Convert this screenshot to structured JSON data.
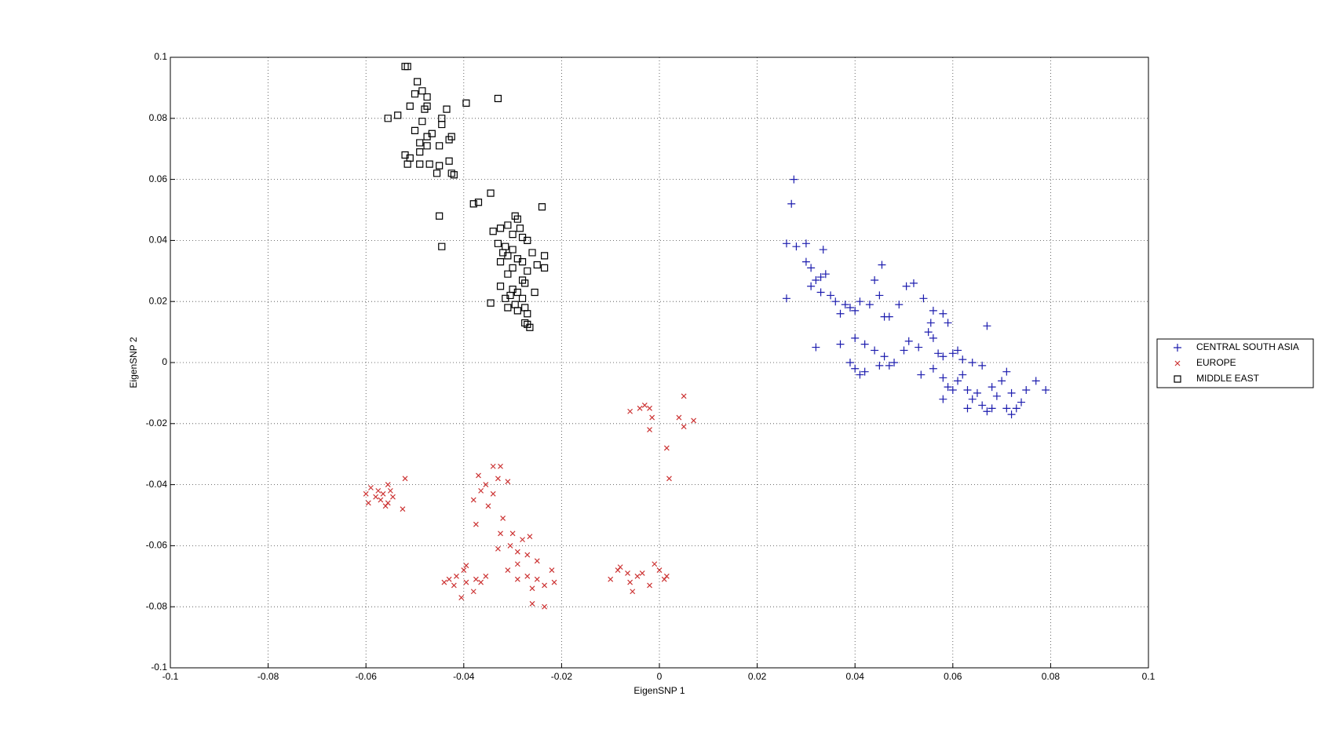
{
  "chart_data": {
    "type": "scatter",
    "xlabel": "EigenSNP 1",
    "ylabel": "EigenSNP 2",
    "xlim": [
      -0.1,
      0.1
    ],
    "ylim": [
      -0.1,
      0.1
    ],
    "xticks": [
      -0.1,
      -0.08,
      -0.06,
      -0.04,
      -0.02,
      0,
      0.02,
      0.04,
      0.06,
      0.08,
      0.1
    ],
    "yticks": [
      -0.1,
      -0.08,
      -0.06,
      -0.04,
      -0.02,
      0,
      0.02,
      0.04,
      0.06,
      0.08,
      0.1
    ],
    "grid": true,
    "legend": "outside-right",
    "series": [
      {
        "name": "CENTRAL SOUTH ASIA",
        "color": "#1c1cae",
        "marker": "plus",
        "x": [
          0.0275,
          0.027,
          0.026,
          0.028,
          0.03,
          0.0335,
          0.026,
          0.03,
          0.031,
          0.033,
          0.032,
          0.034,
          0.031,
          0.033,
          0.035,
          0.036,
          0.038,
          0.039,
          0.04,
          0.037,
          0.041,
          0.043,
          0.045,
          0.0455,
          0.044,
          0.046,
          0.047,
          0.049,
          0.0505,
          0.052,
          0.054,
          0.0555,
          0.056,
          0.058,
          0.059,
          0.032,
          0.037,
          0.04,
          0.042,
          0.044,
          0.046,
          0.048,
          0.05,
          0.051,
          0.053,
          0.055,
          0.056,
          0.057,
          0.058,
          0.06,
          0.061,
          0.062,
          0.064,
          0.066,
          0.039,
          0.04,
          0.041,
          0.042,
          0.045,
          0.047,
          0.056,
          0.058,
          0.059,
          0.06,
          0.061,
          0.062,
          0.063,
          0.064,
          0.065,
          0.066,
          0.067,
          0.068,
          0.069,
          0.07,
          0.071,
          0.072,
          0.073,
          0.074,
          0.075,
          0.077,
          0.079,
          0.067,
          0.071,
          0.072,
          0.068,
          0.063,
          0.058,
          0.0535
        ],
        "y": [
          0.06,
          0.052,
          0.039,
          0.038,
          0.039,
          0.037,
          0.021,
          0.033,
          0.031,
          0.028,
          0.027,
          0.029,
          0.025,
          0.023,
          0.022,
          0.02,
          0.019,
          0.018,
          0.017,
          0.016,
          0.02,
          0.019,
          0.022,
          0.032,
          0.027,
          0.015,
          0.015,
          0.019,
          0.025,
          0.026,
          0.021,
          0.013,
          0.017,
          0.016,
          0.013,
          0.005,
          0.006,
          0.008,
          0.006,
          0.004,
          0.002,
          0.0,
          0.004,
          0.007,
          0.005,
          0.01,
          0.008,
          0.003,
          0.002,
          0.003,
          0.004,
          0.001,
          0.0,
          -0.001,
          0.0,
          -0.002,
          -0.004,
          -0.003,
          -0.001,
          -0.001,
          -0.002,
          -0.005,
          -0.008,
          -0.009,
          -0.006,
          -0.004,
          -0.009,
          -0.012,
          -0.01,
          -0.014,
          -0.016,
          -0.008,
          -0.011,
          -0.006,
          -0.003,
          -0.01,
          -0.015,
          -0.013,
          -0.009,
          -0.006,
          -0.009,
          0.012,
          -0.015,
          -0.017,
          -0.015,
          -0.015,
          -0.012,
          -0.004
        ]
      },
      {
        "name": "EUROPE",
        "color": "#cc3333",
        "marker": "x",
        "x": [
          -0.06,
          -0.059,
          -0.058,
          -0.0575,
          -0.057,
          -0.056,
          -0.0565,
          -0.0555,
          -0.055,
          -0.0545,
          -0.0555,
          -0.0525,
          -0.052,
          -0.0595,
          -0.037,
          -0.034,
          -0.0325,
          -0.0355,
          -0.033,
          -0.031,
          -0.0365,
          -0.034,
          -0.038,
          -0.035,
          -0.032,
          -0.0375,
          -0.0325,
          -0.03,
          -0.028,
          -0.0265,
          -0.0305,
          -0.029,
          -0.033,
          -0.027,
          -0.025,
          -0.029,
          -0.031,
          -0.027,
          -0.029,
          -0.025,
          -0.022,
          -0.0215,
          -0.0235,
          -0.026,
          -0.026,
          -0.0235,
          -0.04,
          -0.0415,
          -0.043,
          -0.044,
          -0.042,
          -0.0395,
          -0.0405,
          -0.038,
          -0.0365,
          -0.0355,
          -0.0375,
          -0.0395,
          -0.01,
          -0.0085,
          -0.0065,
          -0.006,
          -0.0045,
          -0.0035,
          -0.002,
          -0.001,
          0.0,
          0.001,
          0.0015,
          -0.0055,
          -0.008,
          -0.006,
          -0.004,
          -0.003,
          -0.002,
          -0.0015,
          -0.002,
          0.004,
          0.005,
          0.005,
          0.007,
          0.0015,
          0.002
        ],
        "y": [
          -0.043,
          -0.041,
          -0.044,
          -0.042,
          -0.045,
          -0.047,
          -0.043,
          -0.04,
          -0.042,
          -0.044,
          -0.046,
          -0.048,
          -0.038,
          -0.046,
          -0.037,
          -0.034,
          -0.034,
          -0.04,
          -0.038,
          -0.039,
          -0.042,
          -0.043,
          -0.045,
          -0.047,
          -0.051,
          -0.053,
          -0.056,
          -0.056,
          -0.058,
          -0.057,
          -0.06,
          -0.062,
          -0.061,
          -0.063,
          -0.065,
          -0.066,
          -0.068,
          -0.07,
          -0.071,
          -0.071,
          -0.068,
          -0.072,
          -0.073,
          -0.074,
          -0.079,
          -0.08,
          -0.068,
          -0.07,
          -0.071,
          -0.072,
          -0.073,
          -0.072,
          -0.077,
          -0.075,
          -0.072,
          -0.07,
          -0.071,
          -0.0665,
          -0.071,
          -0.068,
          -0.069,
          -0.072,
          -0.07,
          -0.069,
          -0.073,
          -0.066,
          -0.068,
          -0.071,
          -0.07,
          -0.075,
          -0.067,
          -0.016,
          -0.015,
          -0.014,
          -0.015,
          -0.018,
          -0.022,
          -0.018,
          -0.011,
          -0.021,
          -0.019,
          -0.028,
          -0.038
        ]
      },
      {
        "name": "MIDDLE EAST",
        "color": "#000000",
        "marker": "square",
        "x": [
          -0.052,
          -0.0515,
          -0.0495,
          -0.05,
          -0.0485,
          -0.0475,
          -0.051,
          -0.0475,
          -0.048,
          -0.0535,
          -0.0555,
          -0.0485,
          -0.0435,
          -0.0395,
          -0.033,
          -0.0445,
          -0.0445,
          -0.05,
          -0.0465,
          -0.0475,
          -0.0425,
          -0.043,
          -0.049,
          -0.0475,
          -0.045,
          -0.049,
          -0.052,
          -0.051,
          -0.049,
          -0.0515,
          -0.047,
          -0.045,
          -0.043,
          -0.0425,
          -0.042,
          -0.0455,
          -0.038,
          -0.037,
          -0.0345,
          -0.024,
          -0.0325,
          -0.034,
          -0.045,
          -0.0445,
          -0.0295,
          -0.029,
          -0.0285,
          -0.031,
          -0.03,
          -0.028,
          -0.027,
          -0.033,
          -0.0315,
          -0.03,
          -0.0235,
          -0.026,
          -0.032,
          -0.031,
          -0.029,
          -0.0325,
          -0.028,
          -0.025,
          -0.0235,
          -0.03,
          -0.027,
          -0.031,
          -0.028,
          -0.0275,
          -0.0325,
          -0.03,
          -0.029,
          -0.0255,
          -0.0305,
          -0.0315,
          -0.028,
          -0.0345,
          -0.0295,
          -0.031,
          -0.0275,
          -0.029,
          -0.027,
          -0.0275,
          -0.027,
          -0.0265
        ],
        "y": [
          0.097,
          0.097,
          0.092,
          0.088,
          0.089,
          0.087,
          0.084,
          0.084,
          0.083,
          0.081,
          0.08,
          0.079,
          0.083,
          0.085,
          0.0865,
          0.08,
          0.078,
          0.076,
          0.075,
          0.074,
          0.074,
          0.073,
          0.072,
          0.071,
          0.071,
          0.069,
          0.068,
          0.067,
          0.065,
          0.065,
          0.065,
          0.0645,
          0.066,
          0.062,
          0.0615,
          0.062,
          0.052,
          0.0525,
          0.0555,
          0.051,
          0.044,
          0.043,
          0.048,
          0.038,
          0.048,
          0.047,
          0.044,
          0.045,
          0.042,
          0.041,
          0.04,
          0.039,
          0.038,
          0.037,
          0.035,
          0.036,
          0.036,
          0.035,
          0.034,
          0.033,
          0.033,
          0.032,
          0.031,
          0.031,
          0.03,
          0.029,
          0.027,
          0.026,
          0.025,
          0.024,
          0.023,
          0.023,
          0.022,
          0.021,
          0.021,
          0.0195,
          0.019,
          0.018,
          0.018,
          0.017,
          0.016,
          0.013,
          0.0125,
          0.0115
        ]
      }
    ]
  }
}
